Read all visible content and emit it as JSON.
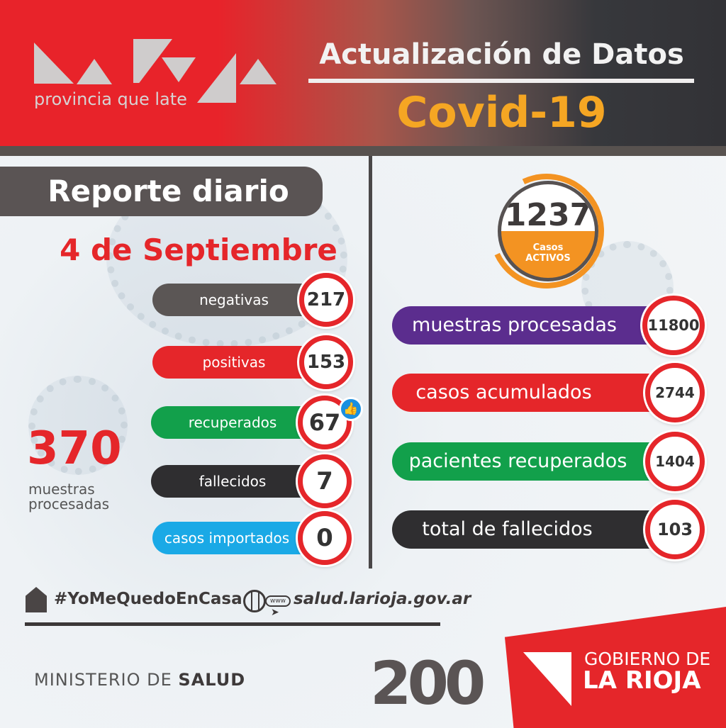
{
  "header": {
    "logo_tagline": "provincia que late",
    "title": "Actualización de Datos",
    "subtitle": "Covid-19"
  },
  "daily": {
    "heading": "Reporte diario",
    "date": "4 de Septiembre",
    "items": [
      {
        "label": "negativas",
        "value": "217",
        "color": "#5b5655"
      },
      {
        "label": "positivas",
        "value": "153",
        "color": "#e5262a"
      },
      {
        "label": "recuperados",
        "value": "67",
        "color": "#12a04b",
        "icon": "thumbs-up-icon"
      },
      {
        "label": "fallecidos",
        "value": "7",
        "color": "#2f2e30"
      },
      {
        "label": "casos importados",
        "value": "0",
        "color": "#1aa9e6"
      }
    ],
    "total_value": "370",
    "total_label": "muestras procesadas"
  },
  "cumulative": {
    "active_value": "1237",
    "active_label_1": "Casos",
    "active_label_2": "ACTIVOS",
    "items": [
      {
        "label": "muestras procesadas",
        "value": "11800",
        "color": "#5b2d8e"
      },
      {
        "label": "casos acumulados",
        "value": "2744",
        "color": "#e5262a"
      },
      {
        "label": "pacientes recuperados",
        "value": "1404",
        "color": "#12a04b"
      },
      {
        "label": "total de fallecidos",
        "value": "103",
        "color": "#2f2e30"
      }
    ]
  },
  "footer": {
    "hashtag": "#YoMeQuedoEnCasa",
    "website": "salud.larioja.gov.ar",
    "www": "www",
    "ministry_light": "MINISTERIO DE ",
    "ministry_bold": "SALUD",
    "bicentennial": "200",
    "gov_line1": "GOBIERNO DE",
    "gov_line2": "LA RIOJA"
  }
}
